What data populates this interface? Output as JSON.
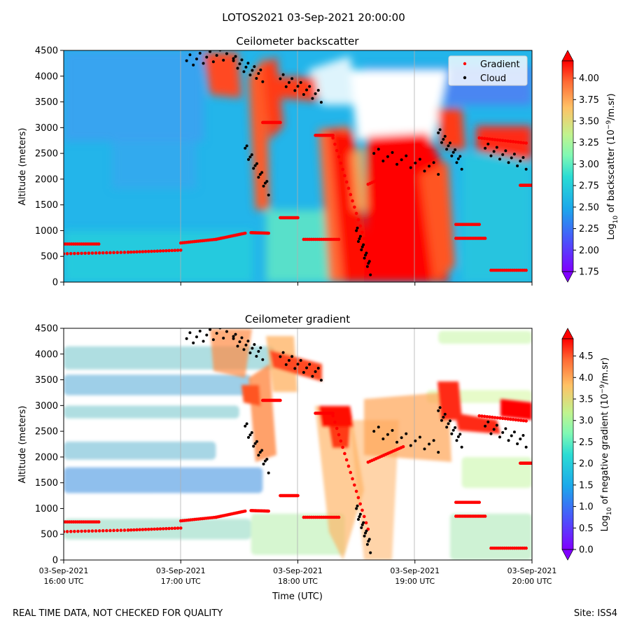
{
  "title": "LOTOS2021 03-Sep-2021 20:00:00",
  "footer": {
    "left": "REAL TIME DATA, NOT CHECKED FOR QUALITY",
    "right": "Site: ISS4"
  },
  "xlabel": "Time (UTC)",
  "xticks": [
    {
      "date": "03-Sep-2021",
      "time": "16:00 UTC",
      "hours": 16
    },
    {
      "date": "03-Sep-2021",
      "time": "17:00 UTC",
      "hours": 17
    },
    {
      "date": "03-Sep-2021",
      "time": "18:00 UTC",
      "hours": 18
    },
    {
      "date": "03-Sep-2021",
      "time": "19:00 UTC",
      "hours": 19
    },
    {
      "date": "03-Sep-2021",
      "time": "20:00 UTC",
      "hours": 20
    }
  ],
  "chart_data": [
    {
      "type": "heatmap",
      "title": "Ceilometer backscatter",
      "ylabel": "Altitude (meters)",
      "xlim_hours": [
        16,
        20
      ],
      "ylim": [
        0,
        4500
      ],
      "yticks": [
        0,
        500,
        1000,
        1500,
        2000,
        2500,
        3000,
        3500,
        4000,
        4500
      ],
      "grid": "vertical lines at hour ticks",
      "colorbar": {
        "label_prefix": "Log",
        "label_sub": "10",
        "label_mid": " of backscatter (10",
        "label_sup": "−9",
        "label_end": "/m.sr)",
        "range": [
          1.75,
          4.2
        ],
        "ticks": [
          "1.75",
          "2.00",
          "2.25",
          "2.50",
          "2.75",
          "3.00",
          "3.25",
          "3.50",
          "3.75",
          "4.00"
        ],
        "tick_values": [
          1.75,
          2.0,
          2.25,
          2.5,
          2.75,
          3.0,
          3.25,
          3.5,
          3.75,
          4.0
        ],
        "colormap": "rainbow"
      },
      "legend": {
        "placement": "top-right",
        "entries": [
          {
            "label": "Gradient",
            "color": "#ff0000",
            "marker": "dot"
          },
          {
            "label": "Cloud",
            "color": "#000000",
            "marker": "dot"
          }
        ]
      },
      "gradient_series": [
        {
          "x": [
            16.0,
            16.3
          ],
          "y": [
            740,
            740
          ]
        },
        {
          "x": [
            16.0,
            16.55
          ],
          "y": [
            550,
            580
          ]
        },
        {
          "x": [
            16.55,
            17.0
          ],
          "y": [
            580,
            620
          ]
        },
        {
          "x": [
            17.0,
            17.3
          ],
          "y": [
            760,
            830
          ]
        },
        {
          "x": [
            17.3,
            17.55
          ],
          "y": [
            830,
            950
          ]
        },
        {
          "x": [
            17.6,
            17.75
          ],
          "y": [
            960,
            950
          ]
        },
        {
          "x": [
            17.7,
            17.85
          ],
          "y": [
            3100,
            3100
          ]
        },
        {
          "x": [
            17.85,
            18.0
          ],
          "y": [
            1250,
            1250
          ]
        },
        {
          "x": [
            18.05,
            18.35
          ],
          "y": [
            830,
            830
          ]
        },
        {
          "x": [
            18.15,
            18.3
          ],
          "y": [
            2850,
            2850
          ]
        },
        {
          "x": [
            18.3,
            18.6
          ],
          "y": [
            2800,
            600
          ]
        },
        {
          "x": [
            18.6,
            18.9
          ],
          "y": [
            1900,
            2200
          ]
        },
        {
          "x": [
            19.35,
            19.55
          ],
          "y": [
            1120,
            1120
          ]
        },
        {
          "x": [
            19.35,
            19.6
          ],
          "y": [
            850,
            850
          ]
        },
        {
          "x": [
            19.65,
            19.95
          ],
          "y": [
            230,
            230
          ]
        },
        {
          "x": [
            19.55,
            19.95
          ],
          "y": [
            2800,
            2700
          ]
        },
        {
          "x": [
            19.9,
            20.0
          ],
          "y": [
            1880,
            1880
          ]
        }
      ],
      "cloud_series": [
        {
          "x": [
            17.05,
            17.45
          ],
          "y": [
            4300,
            4450
          ]
        },
        {
          "x": [
            17.45,
            17.7
          ],
          "y": [
            4300,
            4000
          ]
        },
        {
          "x": [
            17.85,
            18.2
          ],
          "y": [
            3950,
            3600
          ]
        },
        {
          "x": [
            17.55,
            17.75
          ],
          "y": [
            2600,
            1800
          ]
        },
        {
          "x": [
            18.5,
            18.62
          ],
          "y": [
            1000,
            250
          ]
        },
        {
          "x": [
            18.65,
            19.2
          ],
          "y": [
            2500,
            2200
          ]
        },
        {
          "x": [
            19.2,
            19.4
          ],
          "y": [
            2900,
            2300
          ]
        },
        {
          "x": [
            19.6,
            19.95
          ],
          "y": [
            2600,
            2300
          ]
        }
      ]
    },
    {
      "type": "heatmap",
      "title": "Ceilometer gradient",
      "ylabel": "Altitude (meters)",
      "xlim_hours": [
        16,
        20
      ],
      "ylim": [
        0,
        4500
      ],
      "yticks": [
        0,
        500,
        1000,
        1500,
        2000,
        2500,
        3000,
        3500,
        4000,
        4500
      ],
      "grid": "vertical lines at hour ticks",
      "colorbar": {
        "label_prefix": "Log",
        "label_sub": "10",
        "label_mid": " of negative gradient (10",
        "label_sup": "−9",
        "label_end": "/m.sr)",
        "range": [
          0.0,
          4.9
        ],
        "ticks": [
          "0.0",
          "0.5",
          "1.0",
          "1.5",
          "2.0",
          "2.5",
          "3.0",
          "3.5",
          "4.0",
          "4.5"
        ],
        "tick_values": [
          0.0,
          0.5,
          1.0,
          1.5,
          2.0,
          2.5,
          3.0,
          3.5,
          4.0,
          4.5
        ],
        "colormap": "rainbow"
      },
      "bands": [
        {
          "y0": 400,
          "y1": 800,
          "value": 1.5,
          "x0": 16.0,
          "x1": 17.6
        },
        {
          "y0": 1300,
          "y1": 1800,
          "value": 0.9,
          "x0": 16.0,
          "x1": 17.7
        },
        {
          "y0": 1950,
          "y1": 2300,
          "value": 1.2,
          "x0": 16.0,
          "x1": 17.3
        },
        {
          "y0": 2750,
          "y1": 3000,
          "value": 1.3,
          "x0": 16.0,
          "x1": 17.5
        },
        {
          "y0": 3200,
          "y1": 3600,
          "value": 1.1,
          "x0": 16.0,
          "x1": 17.6
        },
        {
          "y0": 3700,
          "y1": 4150,
          "value": 1.3,
          "x0": 16.0,
          "x1": 17.8
        },
        {
          "y0": 100,
          "y1": 900,
          "value": 1.8,
          "x0": 17.6,
          "x1": 18.4
        },
        {
          "y0": 1400,
          "y1": 2000,
          "value": 1.9,
          "x0": 19.4,
          "x1": 20.0
        },
        {
          "y0": 0,
          "y1": 900,
          "value": 1.7,
          "x0": 19.3,
          "x1": 20.0
        },
        {
          "y0": 3050,
          "y1": 3300,
          "value": 2.0,
          "x0": 19.1,
          "x1": 20.0
        },
        {
          "y0": 4200,
          "y1": 4450,
          "value": 1.9,
          "x0": 19.2,
          "x1": 20.0
        }
      ]
    }
  ]
}
